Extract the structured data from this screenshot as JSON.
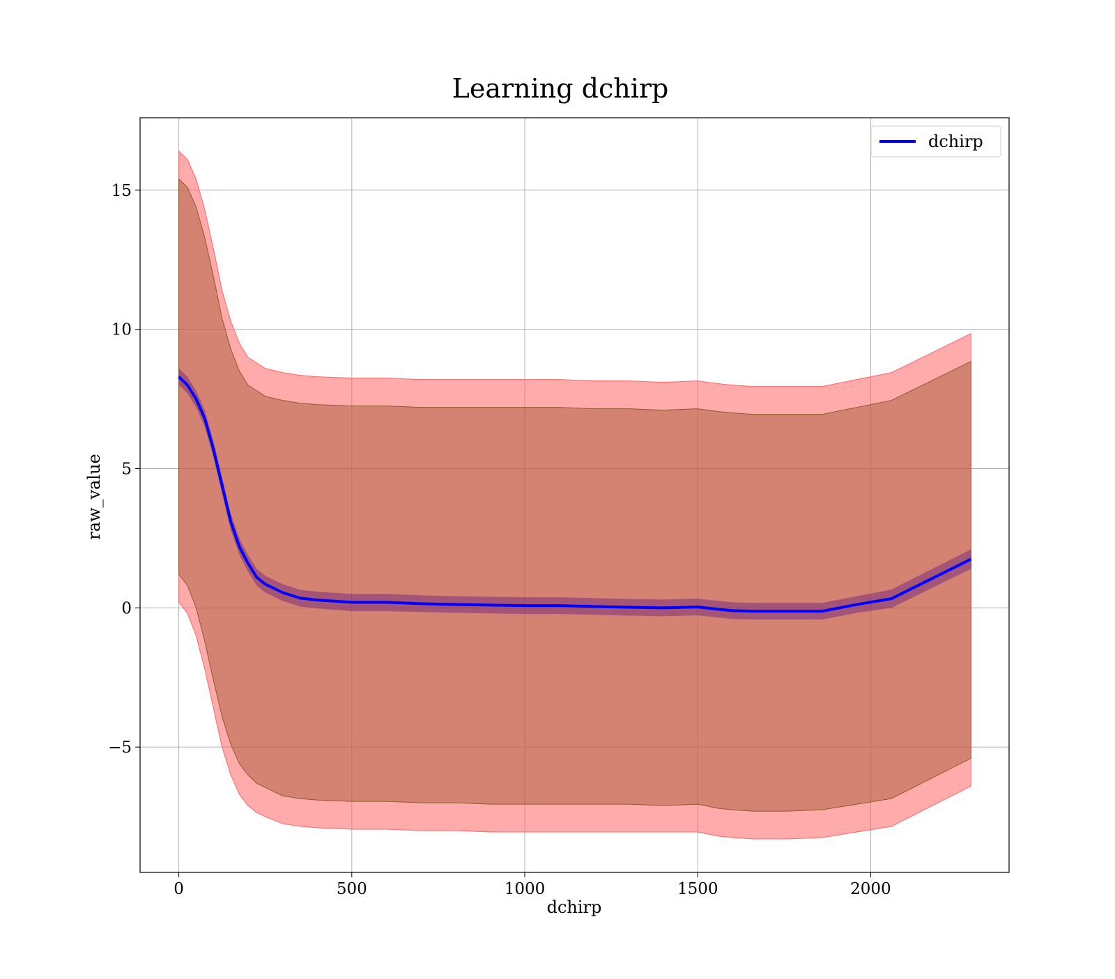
{
  "chart_data": {
    "type": "line",
    "title": "Learning dchirp",
    "xlabel": "dchirp",
    "ylabel": "raw_value",
    "xlim": [
      -112,
      2400
    ],
    "ylim": [
      -9.5,
      17.6
    ],
    "xticks": [
      0,
      500,
      1000,
      1500,
      2000
    ],
    "xtick_labels": [
      "0",
      "500",
      "1000",
      "1500",
      "2000"
    ],
    "yticks": [
      -5,
      0,
      5,
      10,
      15
    ],
    "ytick_labels": [
      "−5",
      "0",
      "5",
      "10",
      "15"
    ],
    "grid": true,
    "legend": {
      "position": "top-right",
      "entries": [
        "dchirp"
      ]
    },
    "colors": {
      "line": "#0000ff",
      "outer_band": "#ff6666",
      "inner_band": "#a0522d",
      "mean_band": "#4b0082"
    },
    "x": [
      0,
      25,
      50,
      75,
      100,
      125,
      150,
      175,
      200,
      225,
      250,
      300,
      350,
      400,
      500,
      600,
      700,
      800,
      900,
      1000,
      1100,
      1200,
      1300,
      1400,
      1500,
      1560,
      1600,
      1660,
      1700,
      1760,
      1860,
      1960,
      2060,
      2290
    ],
    "series": [
      {
        "name": "dchirp",
        "values": [
          8.3,
          8.0,
          7.5,
          6.8,
          5.7,
          4.4,
          3.1,
          2.2,
          1.6,
          1.1,
          0.85,
          0.55,
          0.35,
          0.28,
          0.2,
          0.2,
          0.15,
          0.12,
          0.1,
          0.08,
          0.08,
          0.05,
          0.02,
          0.0,
          0.03,
          -0.05,
          -0.1,
          -0.12,
          -0.12,
          -0.12,
          -0.12,
          0.12,
          0.33,
          1.75
        ],
        "mean_band_lower": [
          8.0,
          7.7,
          7.2,
          6.5,
          5.4,
          4.1,
          2.8,
          1.9,
          1.3,
          0.8,
          0.55,
          0.25,
          0.05,
          -0.02,
          -0.12,
          -0.12,
          -0.15,
          -0.18,
          -0.2,
          -0.22,
          -0.22,
          -0.25,
          -0.28,
          -0.3,
          -0.27,
          -0.35,
          -0.4,
          -0.42,
          -0.42,
          -0.42,
          -0.42,
          -0.18,
          0.0,
          1.4
        ],
        "mean_band_upper": [
          8.6,
          8.3,
          7.8,
          7.1,
          6.0,
          4.7,
          3.4,
          2.5,
          1.9,
          1.4,
          1.15,
          0.85,
          0.65,
          0.58,
          0.5,
          0.5,
          0.45,
          0.42,
          0.4,
          0.38,
          0.38,
          0.35,
          0.32,
          0.3,
          0.33,
          0.25,
          0.2,
          0.18,
          0.18,
          0.18,
          0.18,
          0.42,
          0.66,
          2.1
        ],
        "inner_band_lower": [
          1.2,
          0.8,
          0.0,
          -1.2,
          -2.6,
          -3.9,
          -4.9,
          -5.6,
          -6.0,
          -6.3,
          -6.45,
          -6.75,
          -6.85,
          -6.9,
          -6.95,
          -6.95,
          -7.0,
          -7.0,
          -7.05,
          -7.05,
          -7.05,
          -7.05,
          -7.05,
          -7.1,
          -7.05,
          -7.2,
          -7.25,
          -7.3,
          -7.3,
          -7.3,
          -7.25,
          -7.05,
          -6.85,
          -5.4
        ],
        "inner_band_upper": [
          15.4,
          15.1,
          14.4,
          13.3,
          11.9,
          10.4,
          9.3,
          8.5,
          8.0,
          7.8,
          7.6,
          7.45,
          7.35,
          7.3,
          7.25,
          7.25,
          7.2,
          7.2,
          7.2,
          7.2,
          7.2,
          7.15,
          7.15,
          7.1,
          7.15,
          7.05,
          7.0,
          6.95,
          6.95,
          6.95,
          6.95,
          7.2,
          7.45,
          8.85
        ],
        "outer_band_lower": [
          0.2,
          -0.2,
          -1.0,
          -2.2,
          -3.6,
          -5.0,
          -6.0,
          -6.7,
          -7.1,
          -7.35,
          -7.5,
          -7.75,
          -7.85,
          -7.9,
          -7.95,
          -7.95,
          -8.0,
          -8.0,
          -8.05,
          -8.05,
          -8.05,
          -8.05,
          -8.05,
          -8.05,
          -8.05,
          -8.2,
          -8.25,
          -8.3,
          -8.3,
          -8.3,
          -8.25,
          -8.05,
          -7.85,
          -6.4
        ],
        "outer_band_upper": [
          16.4,
          16.1,
          15.4,
          14.3,
          12.9,
          11.4,
          10.3,
          9.5,
          9.0,
          8.8,
          8.6,
          8.45,
          8.35,
          8.3,
          8.25,
          8.25,
          8.2,
          8.2,
          8.2,
          8.2,
          8.2,
          8.15,
          8.15,
          8.1,
          8.15,
          8.05,
          8.0,
          7.95,
          7.95,
          7.95,
          7.95,
          8.2,
          8.45,
          9.85
        ]
      }
    ]
  }
}
